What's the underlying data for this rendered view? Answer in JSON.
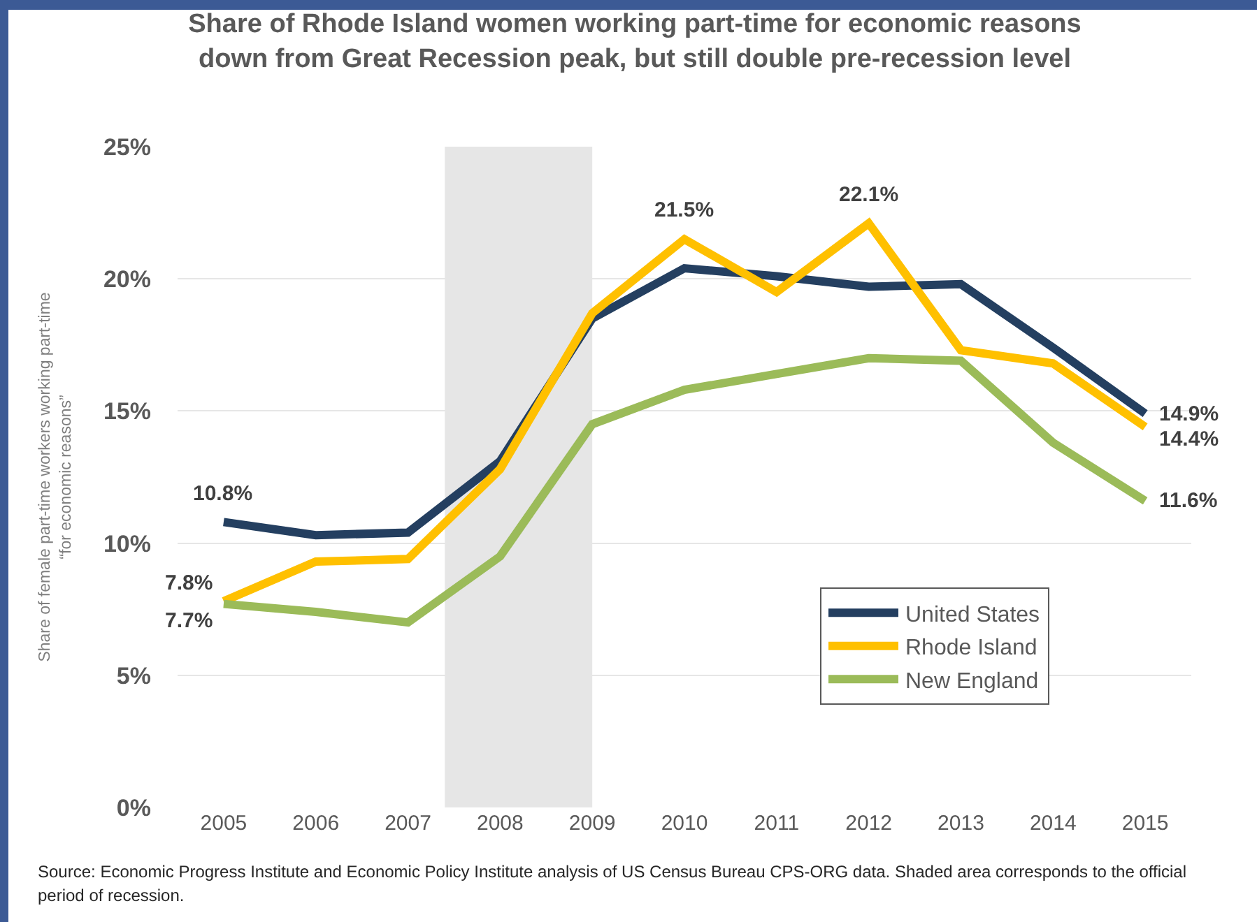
{
  "chart_data": {
    "type": "line",
    "title": "Share of Rhode Island women working part-time for economic reasons down from Great Recession peak, but still double pre-recession level",
    "ylabel": "Share of female part-time workers working part-time “for economic reasons”",
    "x": [
      2005,
      2006,
      2007,
      2008,
      2009,
      2010,
      2011,
      2012,
      2013,
      2014,
      2015
    ],
    "xlim": [
      2004.5,
      2015.5
    ],
    "xticks": [
      2005,
      2006,
      2007,
      2008,
      2009,
      2010,
      2011,
      2012,
      2013,
      2014,
      2015
    ],
    "ylim": [
      0,
      25
    ],
    "yticks": [
      {
        "value": 0,
        "label": "0%"
      },
      {
        "value": 5,
        "label": "5%"
      },
      {
        "value": 10,
        "label": "10%"
      },
      {
        "value": 15,
        "label": "15%"
      },
      {
        "value": 20,
        "label": "20%"
      },
      {
        "value": 25,
        "label": "25%"
      }
    ],
    "series": [
      {
        "name": "United States",
        "color": "#243f60",
        "values": [
          10.8,
          10.3,
          10.4,
          13.1,
          18.5,
          20.4,
          20.1,
          19.7,
          19.8,
          17.4,
          14.9
        ],
        "value_labels": [
          "10.8%",
          null,
          null,
          null,
          null,
          null,
          null,
          null,
          null,
          null,
          "14.9%"
        ]
      },
      {
        "name": "Rhode Island",
        "color": "#ffc000",
        "values": [
          7.8,
          9.3,
          9.4,
          12.8,
          18.7,
          21.5,
          19.5,
          22.1,
          17.3,
          16.8,
          14.4
        ],
        "value_labels": [
          "7.8%",
          null,
          null,
          null,
          null,
          "21.5%",
          null,
          "22.1%",
          null,
          null,
          "14.4%"
        ]
      },
      {
        "name": "New England",
        "color": "#9bbb59",
        "values": [
          7.7,
          7.4,
          7.0,
          9.5,
          14.5,
          15.8,
          16.4,
          17.0,
          16.9,
          13.8,
          11.6
        ],
        "value_labels": [
          "7.7%",
          null,
          null,
          null,
          null,
          null,
          null,
          null,
          null,
          null,
          "11.6%"
        ]
      }
    ],
    "bands": [
      {
        "axis": "x",
        "from": 2007.4,
        "to": 2009,
        "color": "#e6e6e6"
      }
    ],
    "grid": "y",
    "legend": "bottom right",
    "line_style": "solid",
    "annotations": [
      "Source: Economic Progress Institute and Economic Policy Institute analysis of US Census Bureau CPS-ORG data. Shaded area corresponds to the official period of recession."
    ]
  }
}
